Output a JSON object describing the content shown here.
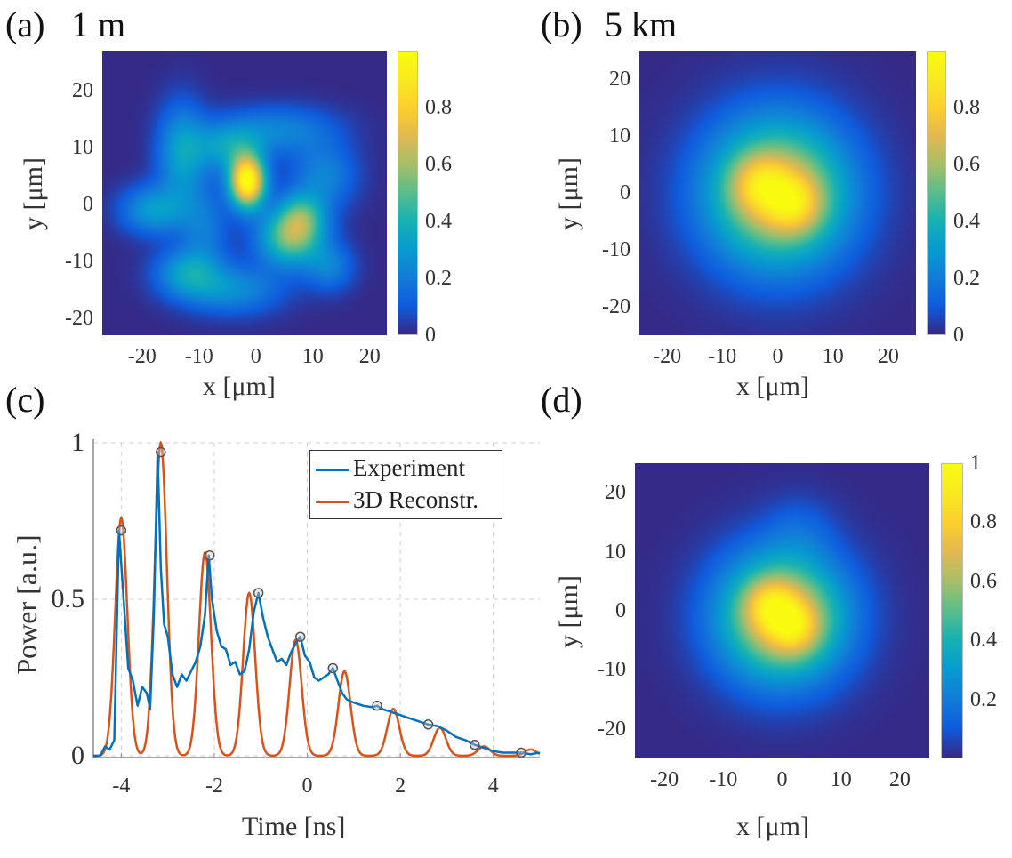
{
  "panels": {
    "a": {
      "label": "(a)",
      "title": "1 m"
    },
    "b": {
      "label": "(b)",
      "title": "5 km"
    },
    "c": {
      "label": "(c)"
    },
    "d": {
      "label": "(d)"
    }
  },
  "chart_data": [
    {
      "id": "a",
      "type": "heatmap",
      "title": "1 m",
      "xlabel": "x [μm]",
      "ylabel": "y [μm]",
      "xlim": [
        -27,
        23
      ],
      "ylim": [
        -23,
        27
      ],
      "xticks": [
        "-20",
        "-10",
        "0",
        "10",
        "20"
      ],
      "xtick_values": [
        -20,
        -10,
        0,
        10,
        20
      ],
      "yticks": [
        "20",
        "10",
        "0",
        "-10",
        "-20"
      ],
      "ytick_values": [
        20,
        10,
        0,
        -10,
        -20
      ],
      "colorbar": {
        "ticks": [
          "0",
          "0.2",
          "0.4",
          "0.6",
          "0.8"
        ],
        "tick_values": [
          0,
          0.2,
          0.4,
          0.6,
          0.8
        ],
        "range": [
          0,
          1
        ],
        "colormap": "parula"
      },
      "description": "Speckled multimode intensity pattern; bright peak near (-1, 4), secondary lobe near (6, -6)",
      "blobs": [
        {
          "x": -1.5,
          "y": 4,
          "sx": 2.2,
          "sy": 3.2,
          "amp": 1.0
        },
        {
          "x": 6,
          "y": -6,
          "sx": 4,
          "sy": 3.5,
          "amp": 0.5
        },
        {
          "x": 8,
          "y": -2,
          "sx": 3,
          "sy": 3,
          "amp": 0.35
        },
        {
          "x": -13,
          "y": 9,
          "sx": 3,
          "sy": 6,
          "amp": 0.32
        },
        {
          "x": -5,
          "y": 10,
          "sx": 4,
          "sy": 3,
          "amp": 0.28
        },
        {
          "x": 4,
          "y": 13,
          "sx": 7,
          "sy": 3,
          "amp": 0.22
        },
        {
          "x": -18,
          "y": -1,
          "sx": 4,
          "sy": 3,
          "amp": 0.3
        },
        {
          "x": -12,
          "y": -12,
          "sx": 4,
          "sy": 3,
          "amp": 0.3
        },
        {
          "x": -4,
          "y": -15,
          "sx": 6,
          "sy": 3,
          "amp": 0.25
        },
        {
          "x": 12,
          "y": 5,
          "sx": 4,
          "sy": 4,
          "amp": 0.22
        },
        {
          "x": -9,
          "y": -4,
          "sx": 3,
          "sy": 5,
          "amp": 0.18
        },
        {
          "x": 13,
          "y": -11,
          "sx": 3,
          "sy": 3,
          "amp": 0.2
        }
      ]
    },
    {
      "id": "b",
      "type": "heatmap",
      "title": "5 km",
      "xlabel": "x [μm]",
      "ylabel": "y [μm]",
      "xlim": [
        -25,
        25
      ],
      "ylim": [
        -25,
        25
      ],
      "xticks": [
        "-20",
        "-10",
        "0",
        "10",
        "20"
      ],
      "xtick_values": [
        -20,
        -10,
        0,
        10,
        20
      ],
      "yticks": [
        "20",
        "10",
        "0",
        "-10",
        "-20"
      ],
      "ytick_values": [
        20,
        10,
        0,
        -10,
        -20
      ],
      "colorbar": {
        "ticks": [
          "0",
          "0.2",
          "0.4",
          "0.6",
          "0.8"
        ],
        "tick_values": [
          0,
          0.2,
          0.4,
          0.6,
          0.8
        ],
        "range": [
          0,
          1
        ],
        "colormap": "parula"
      },
      "description": "Smooth near-Gaussian spot with two-lobed core near (-3, 1) and (3, -2)",
      "blobs": [
        {
          "x": 0,
          "y": 0,
          "sx": 9,
          "sy": 9,
          "amp": 0.75
        },
        {
          "x": -3.5,
          "y": 1.5,
          "sx": 3.5,
          "sy": 3.5,
          "amp": 0.25
        },
        {
          "x": 3,
          "y": -2,
          "sx": 3.5,
          "sy": 3.5,
          "amp": 0.28
        }
      ]
    },
    {
      "id": "c",
      "type": "line",
      "xlabel": "Time [ns]",
      "ylabel": "Power [a.u.]",
      "xlim": [
        -4.6,
        5
      ],
      "ylim": [
        0,
        1
      ],
      "xticks": [
        "-4",
        "-2",
        "0",
        "2",
        "4"
      ],
      "xtick_values": [
        -4,
        -2,
        0,
        2,
        4
      ],
      "yticks": [
        "0",
        "0.5",
        "1"
      ],
      "ytick_values": [
        0,
        0.5,
        1
      ],
      "grid": true,
      "legend": {
        "placement": "top-right",
        "entries": [
          "Experiment",
          "3D Reconstr."
        ]
      },
      "series": [
        {
          "name": "Experiment",
          "color": "#0072BD",
          "x": [
            -4.6,
            -4.45,
            -4.35,
            -4.25,
            -4.15,
            -4.05,
            -3.95,
            -3.85,
            -3.75,
            -3.65,
            -3.55,
            -3.45,
            -3.38,
            -3.3,
            -3.22,
            -3.15,
            -3.08,
            -3.0,
            -2.9,
            -2.8,
            -2.7,
            -2.6,
            -2.5,
            -2.4,
            -2.3,
            -2.2,
            -2.12,
            -2.05,
            -1.95,
            -1.85,
            -1.75,
            -1.65,
            -1.55,
            -1.45,
            -1.35,
            -1.25,
            -1.15,
            -1.05,
            -0.95,
            -0.85,
            -0.75,
            -0.65,
            -0.55,
            -0.45,
            -0.35,
            -0.25,
            -0.15,
            -0.05,
            0.05,
            0.15,
            0.25,
            0.35,
            0.45,
            0.55,
            0.65,
            0.75,
            0.85,
            1.0,
            1.2,
            1.4,
            1.5,
            1.6,
            1.8,
            2.0,
            2.2,
            2.4,
            2.6,
            2.8,
            3.0,
            3.2,
            3.4,
            3.6,
            3.8,
            4.0,
            4.2,
            4.4,
            4.6,
            4.8,
            5.0
          ],
          "y": [
            0,
            0,
            0.03,
            0.02,
            0.05,
            0.72,
            0.5,
            0.28,
            0.24,
            0.16,
            0.22,
            0.2,
            0.15,
            0.45,
            0.97,
            0.6,
            0.42,
            0.38,
            0.26,
            0.22,
            0.26,
            0.24,
            0.27,
            0.3,
            0.35,
            0.45,
            0.64,
            0.5,
            0.4,
            0.35,
            0.34,
            0.29,
            0.3,
            0.26,
            0.27,
            0.34,
            0.46,
            0.52,
            0.44,
            0.38,
            0.34,
            0.3,
            0.31,
            0.29,
            0.33,
            0.36,
            0.38,
            0.32,
            0.3,
            0.25,
            0.24,
            0.25,
            0.26,
            0.28,
            0.24,
            0.2,
            0.18,
            0.17,
            0.16,
            0.155,
            0.16,
            0.15,
            0.14,
            0.13,
            0.12,
            0.11,
            0.1,
            0.095,
            0.08,
            0.06,
            0.05,
            0.035,
            0.025,
            0.015,
            0.01,
            0.01,
            0.01,
            0.005,
            0.01
          ]
        },
        {
          "name": "3D Reconstr.",
          "color": "#D95319",
          "peaks": [
            {
              "t": -4.0,
              "p": 0.76
            },
            {
              "t": -3.15,
              "p": 1.0
            },
            {
              "t": -2.2,
              "p": 0.65
            },
            {
              "t": -1.25,
              "p": 0.52
            },
            {
              "t": -0.25,
              "p": 0.37
            },
            {
              "t": 0.8,
              "p": 0.27
            },
            {
              "t": 1.85,
              "p": 0.15
            },
            {
              "t": 2.85,
              "p": 0.09
            },
            {
              "t": 3.8,
              "p": 0.03
            },
            {
              "t": 4.8,
              "p": 0.02
            }
          ],
          "peak_width_ns": 0.13
        }
      ],
      "markers": {
        "description": "circle markers at detected experimental peaks",
        "points": [
          {
            "t": -4.0,
            "p": 0.72
          },
          {
            "t": -3.15,
            "p": 0.97
          },
          {
            "t": -2.1,
            "p": 0.64
          },
          {
            "t": -1.05,
            "p": 0.52
          },
          {
            "t": -0.15,
            "p": 0.38
          },
          {
            "t": 0.55,
            "p": 0.28
          },
          {
            "t": 1.5,
            "p": 0.16
          },
          {
            "t": 2.6,
            "p": 0.1
          },
          {
            "t": 3.6,
            "p": 0.035
          },
          {
            "t": 4.6,
            "p": 0.01
          }
        ]
      }
    },
    {
      "id": "d",
      "type": "heatmap",
      "xlabel": "x [μm]",
      "ylabel": "y [μm]",
      "xlim": [
        -25,
        25
      ],
      "ylim": [
        -25,
        25
      ],
      "xticks": [
        "-20",
        "-10",
        "0",
        "10",
        "20"
      ],
      "xtick_values": [
        -20,
        -10,
        0,
        10,
        20
      ],
      "yticks": [
        "20",
        "10",
        "0",
        "-10",
        "-20"
      ],
      "ytick_values": [
        20,
        10,
        0,
        -10,
        -20
      ],
      "colorbar": {
        "ticks": [
          "0.2",
          "0.4",
          "0.6",
          "0.8",
          "1"
        ],
        "tick_values": [
          0.2,
          0.4,
          0.6,
          0.8,
          1
        ],
        "range": [
          0,
          1
        ],
        "colormap": "parula"
      },
      "description": "Reconstructed spot, slightly tighter core with two lobes near (-2, 1) and (2, -3)",
      "blobs": [
        {
          "x": 0,
          "y": -1,
          "sx": 7.5,
          "sy": 7.5,
          "amp": 0.78
        },
        {
          "x": -2,
          "y": 1,
          "sx": 3,
          "sy": 3,
          "amp": 0.25
        },
        {
          "x": 2,
          "y": -3,
          "sx": 3,
          "sy": 3,
          "amp": 0.25
        },
        {
          "x": 3,
          "y": 14,
          "sx": 4,
          "sy": 4,
          "amp": 0.08
        }
      ]
    }
  ]
}
